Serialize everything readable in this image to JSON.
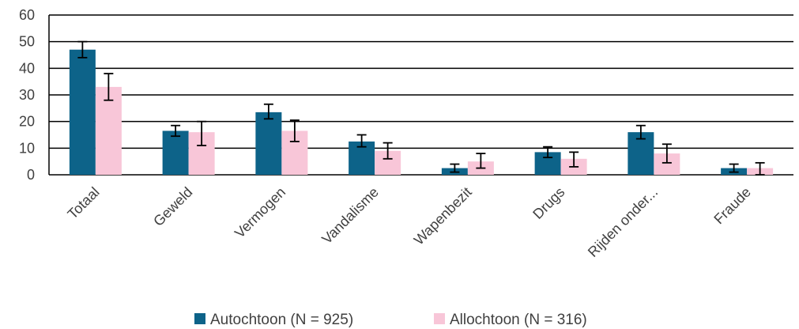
{
  "chart_data": {
    "type": "bar",
    "title": "",
    "xlabel": "",
    "ylabel": "",
    "ylim": [
      0,
      60
    ],
    "yticks": [
      0,
      10,
      20,
      30,
      40,
      50,
      60
    ],
    "grid": true,
    "legend_position": "bottom",
    "categories": [
      "Totaal",
      "Geweld",
      "Vermogen",
      "Vandalisme",
      "Wapenbezit",
      "Drugs",
      "Rijden onder...",
      "Fraude"
    ],
    "series": [
      {
        "name": "Autochtoon (N = 925)",
        "color": "#0d6389",
        "values": [
          47,
          16.5,
          23.5,
          12.5,
          2.5,
          8.5,
          16,
          2.5
        ],
        "error_low": [
          44,
          14.5,
          21,
          10.5,
          1,
          6.5,
          13.5,
          1
        ],
        "error_high": [
          50,
          18.5,
          26.5,
          15,
          4,
          10.5,
          18.5,
          4
        ]
      },
      {
        "name": "Allochtoon (N = 316)",
        "color": "#f8c6d8",
        "values": [
          33,
          16,
          16.5,
          9,
          5,
          6,
          8,
          2.5
        ],
        "error_low": [
          28,
          11,
          12.5,
          6,
          2.5,
          3,
          4.5,
          0
        ],
        "error_high": [
          38,
          20,
          20.5,
          12,
          8,
          8.5,
          11.5,
          4.5
        ]
      }
    ]
  }
}
